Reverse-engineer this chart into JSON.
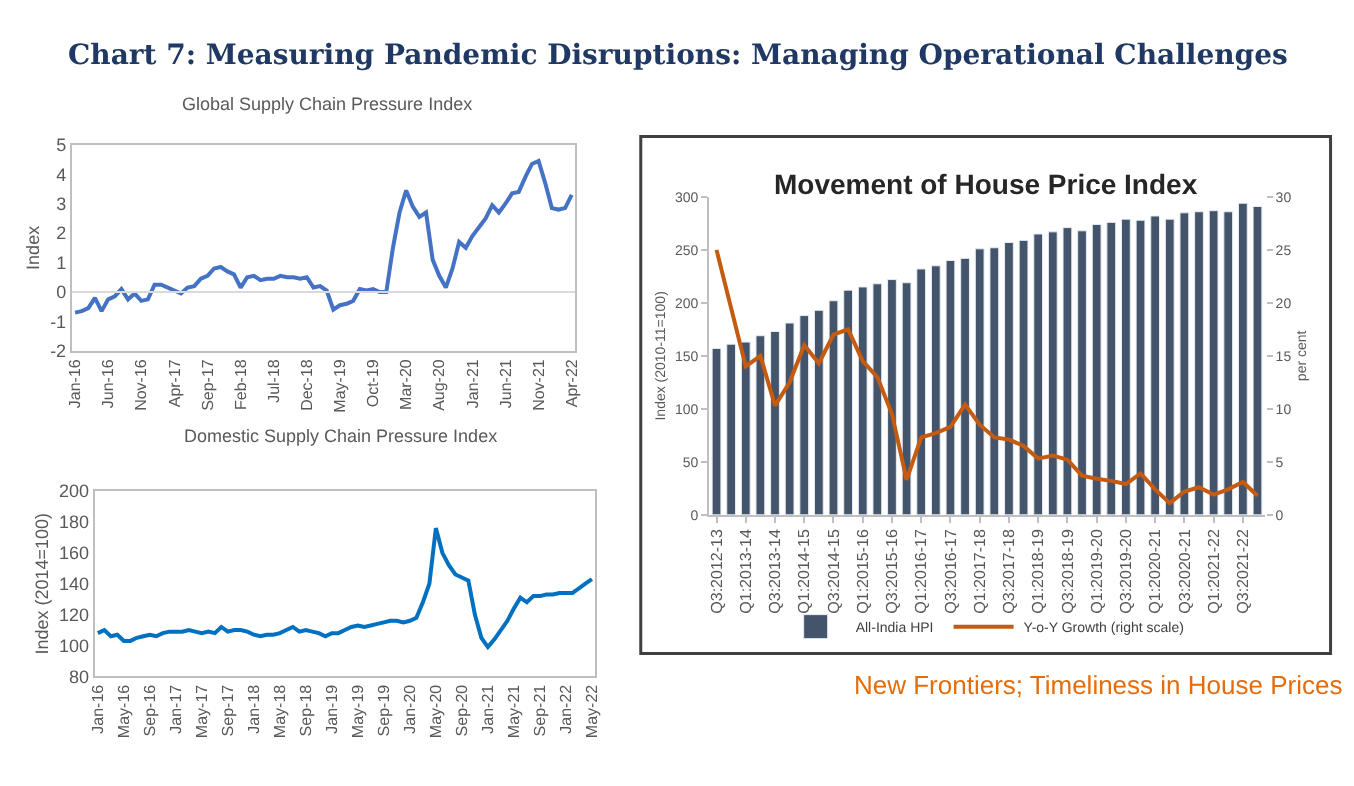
{
  "chart_data": [
    {
      "type": "other",
      "title": "Chart 7: Measuring Pandemic Disruptions: Managing Operational Challenges",
      "annotations": [
        "New Frontiers; Timeliness in House Prices"
      ]
    },
    {
      "type": "line",
      "title": "Global Supply Chain Pressure Index",
      "ylabel": "Index",
      "ylim": [
        -2,
        5
      ],
      "yticks": [
        -2,
        -1,
        0,
        1,
        2,
        3,
        4,
        5
      ],
      "grid": false,
      "legend": false,
      "ref_lines": [
        {
          "axis": "y",
          "value": 0,
          "color": "#d9d9d9"
        }
      ],
      "categories": [
        "Jan-16",
        null,
        null,
        null,
        null,
        "Jun-16",
        null,
        null,
        null,
        null,
        "Nov-16",
        null,
        null,
        null,
        null,
        "Apr-17",
        null,
        null,
        null,
        null,
        "Sep-17",
        null,
        null,
        null,
        null,
        "Feb-18",
        null,
        null,
        null,
        null,
        "Jul-18",
        null,
        null,
        null,
        null,
        "Dec-18",
        null,
        null,
        null,
        null,
        "May-19",
        null,
        null,
        null,
        null,
        "Oct-19",
        null,
        null,
        null,
        null,
        "Mar-20",
        null,
        null,
        null,
        null,
        "Aug-20",
        null,
        null,
        null,
        null,
        "Jan-21",
        null,
        null,
        null,
        null,
        "Jun-21",
        null,
        null,
        null,
        null,
        "Nov-21",
        null,
        null,
        null,
        null,
        "Apr-22"
      ],
      "series": [
        {
          "color": "#4472c4",
          "values": [
            -0.7,
            -0.65,
            -0.55,
            -0.2,
            -0.65,
            -0.25,
            -0.15,
            0.1,
            -0.25,
            -0.05,
            -0.3,
            -0.25,
            0.25,
            0.25,
            0.15,
            0.05,
            -0.05,
            0.15,
            0.2,
            0.45,
            0.55,
            0.8,
            0.85,
            0.7,
            0.6,
            0.15,
            0.5,
            0.55,
            0.4,
            0.45,
            0.45,
            0.55,
            0.5,
            0.5,
            0.45,
            0.5,
            0.15,
            0.2,
            0.05,
            -0.6,
            -0.45,
            -0.4,
            -0.3,
            0.1,
            0.05,
            0.1,
            0.0,
            0.0,
            1.5,
            2.7,
            3.45,
            2.9,
            2.55,
            2.7,
            1.1,
            0.55,
            0.15,
            0.8,
            1.7,
            1.5,
            1.9,
            2.2,
            2.5,
            2.95,
            2.7,
            3.0,
            3.35,
            3.4,
            3.9,
            4.35,
            4.45,
            3.7,
            2.85,
            2.8,
            2.85,
            3.3
          ]
        }
      ]
    },
    {
      "type": "line",
      "title": "Domestic Supply Chain Pressure Index",
      "ylabel": "Index (2014=100)",
      "ylim": [
        80,
        200
      ],
      "yticks": [
        80,
        100,
        120,
        140,
        160,
        180,
        200
      ],
      "grid": false,
      "legend": false,
      "categories": [
        "Jan-16",
        null,
        null,
        null,
        "May-16",
        null,
        null,
        null,
        "Sep-16",
        null,
        null,
        null,
        "Jan-17",
        null,
        null,
        null,
        "May-17",
        null,
        null,
        null,
        "Sep-17",
        null,
        null,
        null,
        "Jan-18",
        null,
        null,
        null,
        "May-18",
        null,
        null,
        null,
        "Sep-18",
        null,
        null,
        null,
        "Jan-19",
        null,
        null,
        null,
        "May-19",
        null,
        null,
        null,
        "Sep-19",
        null,
        null,
        null,
        "Jan-20",
        null,
        null,
        null,
        "May-20",
        null,
        null,
        null,
        "Sep-20",
        null,
        null,
        null,
        "Jan-21",
        null,
        null,
        null,
        "May-21",
        null,
        null,
        null,
        "Sep-21",
        null,
        null,
        null,
        "Jan-22",
        null,
        null,
        null,
        "May-22"
      ],
      "series": [
        {
          "color": "#0070c0",
          "values": [
            108,
            110,
            106,
            107,
            103,
            103,
            105,
            106,
            107,
            106,
            108,
            109,
            109,
            109,
            110,
            109,
            108,
            109,
            108,
            112,
            109,
            110,
            110,
            109,
            107,
            106,
            107,
            107,
            108,
            110,
            112,
            109,
            110,
            109,
            108,
            106,
            108,
            108,
            110,
            112,
            113,
            112,
            113,
            114,
            115,
            116,
            116,
            115,
            116,
            118,
            128,
            140,
            176,
            160,
            152,
            146,
            144,
            142,
            120,
            105,
            99,
            104,
            110,
            116,
            124,
            131,
            128,
            132,
            132,
            133,
            133,
            134,
            134,
            134,
            137,
            140,
            143
          ]
        }
      ]
    },
    {
      "type": "bar",
      "title": "Movement of House Price Index",
      "ylabel": "Index (2010-11=100)",
      "y2label": "per cent",
      "ylim": [
        0,
        300
      ],
      "yticks": [
        0,
        50,
        100,
        150,
        200,
        250,
        300
      ],
      "y2lim": [
        0,
        30
      ],
      "y2ticks": [
        0,
        5,
        10,
        15,
        20,
        25,
        30
      ],
      "grid": false,
      "legend": "bottom",
      "categories": [
        "Q3:2012-13",
        null,
        "Q1:2013-14",
        null,
        "Q3:2013-14",
        null,
        "Q1:2014-15",
        null,
        "Q3:2014-15",
        null,
        "Q1:2015-16",
        null,
        "Q3:2015-16",
        null,
        "Q1:2016-17",
        null,
        "Q3:2016-17",
        null,
        "Q1:2017-18",
        null,
        "Q3:2017-18",
        null,
        "Q1:2018-19",
        null,
        "Q3:2018-19",
        null,
        "Q1:2019-20",
        null,
        "Q3:2019-20",
        null,
        "Q1:2020-21",
        null,
        "Q3:2020-21",
        null,
        "Q1:2021-22",
        null,
        "Q3:2021-22",
        null
      ],
      "series": [
        {
          "name": "All-India HPI",
          "type": "bar",
          "color": "#44546a",
          "values": [
            157,
            161,
            163,
            169,
            173,
            181,
            188,
            193,
            202,
            212,
            215,
            218,
            222,
            219,
            232,
            235,
            240,
            242,
            251,
            252,
            257,
            259,
            265,
            267,
            271,
            268,
            274,
            276,
            279,
            278,
            282,
            279,
            285,
            286,
            287,
            286,
            294,
            291
          ]
        },
        {
          "name": "Y-o-Y Growth (right scale)",
          "type": "line",
          "axis": "y2",
          "color": "#c55a11",
          "values": [
            25,
            19.5,
            14,
            15,
            10.3,
            12.5,
            16,
            14.3,
            17,
            17.5,
            14.5,
            13,
            9.5,
            3.3,
            7.3,
            7.7,
            8.3,
            10.4,
            8.5,
            7.3,
            7.1,
            6.5,
            5.3,
            5.6,
            5.2,
            3.7,
            3.4,
            3.2,
            2.9,
            3.9,
            2.4,
            1.1,
            2.2,
            2.6,
            1.9,
            2.4,
            3.1,
            1.8
          ]
        }
      ]
    }
  ]
}
